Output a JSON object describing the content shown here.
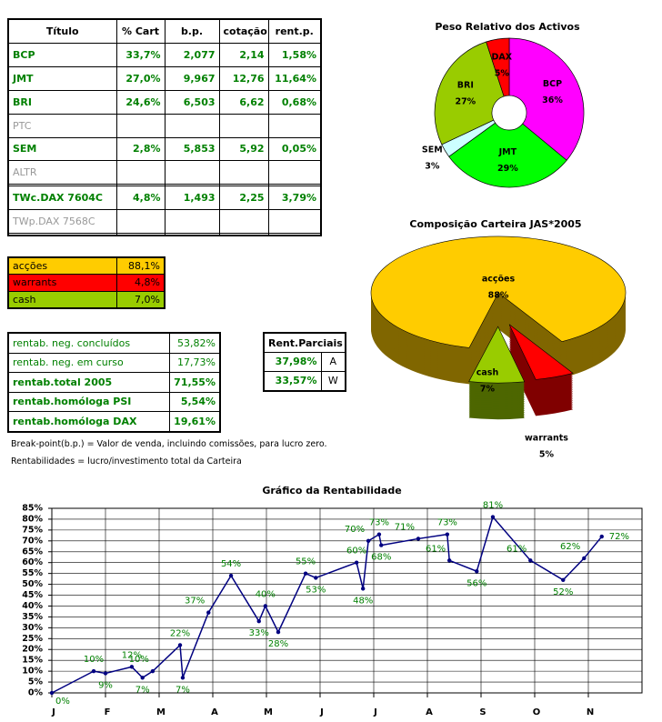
{
  "portfolio_table": {
    "header": [
      "Título",
      "% Cart",
      "b.p.",
      "cotação",
      "rent.p."
    ],
    "rows": [
      [
        "BCP",
        "33,7%",
        "2,077",
        "2,14",
        "1,58%"
      ],
      [
        "JMT",
        "27,0%",
        "9,967",
        "12,76",
        "11,64%"
      ],
      [
        "BRI",
        "24,6%",
        "6,503",
        "6,62",
        "0,68%"
      ],
      [
        "PTC"
      ],
      [
        "SEM",
        "2,8%",
        "5,853",
        "5,92",
        "0,05%"
      ],
      [
        "ALTR"
      ],
      [],
      [
        "TWc.DAX 7604C",
        "4,8%",
        "1,493",
        "2,25",
        "3,79%"
      ],
      [
        "TWp.DAX 7568C"
      ],
      []
    ]
  },
  "allocation_table": {
    "rows": [
      {
        "label": "acções",
        "value": "88,1%",
        "color": "#ffcc00"
      },
      {
        "label": "warrants",
        "value": "4,8%",
        "color": "#ff0000"
      },
      {
        "label": "cash",
        "value": "7,0%",
        "color": "#99cc00"
      }
    ]
  },
  "returns_table": {
    "rows": [
      {
        "label": "rentab. neg. concluídos",
        "value": "53,82%",
        "bold": false
      },
      {
        "label": "rentab. neg. em curso",
        "value": "17,73%",
        "bold": false
      },
      {
        "label": "rentab.total 2005",
        "value": "71,55%",
        "bold": true
      },
      {
        "label": "rentab.homóloga PSI",
        "value": "5,54%",
        "bold": true
      },
      {
        "label": "rentab.homóloga DAX",
        "value": "19,61%",
        "bold": true
      }
    ]
  },
  "partial_returns_table": {
    "header": "Rent.Parciais",
    "rows": [
      [
        "37,98%",
        "A"
      ],
      [
        "33,57%",
        "W"
      ]
    ]
  },
  "notes": [
    "Break-point(b.p.) = Valor de venda, incluindo comissões, para lucro zero.",
    "Rentabilidades = lucro/investimento total da Carteira"
  ],
  "chart_data": [
    {
      "type": "pie",
      "donut": true,
      "title": "Peso Relativo dos Activos",
      "categories": [
        "BCP",
        "JMT",
        "SEM",
        "BRI",
        "DAX"
      ],
      "values": [
        36,
        29,
        3,
        27,
        5
      ],
      "value_labels": [
        "36%",
        "29%",
        "3%",
        "27%",
        "5%"
      ],
      "colors": [
        "#ff00ff",
        "#00ff00",
        "#ccffff",
        "#99cc00",
        "#ff0000"
      ]
    },
    {
      "type": "pie3d",
      "title": "Composição Carteira JAS*2005",
      "categories": [
        "acções",
        "warrants",
        "cash"
      ],
      "values": [
        88,
        5,
        7
      ],
      "value_labels": [
        "88%",
        "5%",
        "7%"
      ],
      "colors": [
        "#ffcc00",
        "#ff0000",
        "#99cc00"
      ],
      "exploded": [
        false,
        true,
        true
      ]
    },
    {
      "type": "line",
      "title": "Gráfico da Rentabilidade",
      "color": "#000080",
      "label_color": "#008000",
      "x": [
        0,
        0.78,
        1.0,
        1.49,
        1.69,
        1.88,
        2.39,
        2.44,
        2.92,
        3.34,
        3.86,
        3.98,
        4.22,
        4.73,
        4.92,
        5.68,
        5.8,
        5.9,
        6.1,
        6.14,
        6.83,
        7.37,
        7.41,
        7.92,
        8.22,
        8.92,
        9.53,
        9.92,
        10.25
      ],
      "values": [
        0,
        10,
        9,
        12,
        7,
        10,
        22,
        7,
        37,
        54,
        33,
        40,
        28,
        55,
        53,
        60,
        48,
        70,
        73,
        68,
        71,
        73,
        61,
        56,
        81,
        61,
        52,
        62,
        72
      ],
      "value_labels": [
        "0%",
        "10%",
        "9%",
        "12%",
        "7%",
        "10%",
        "22%",
        "7%",
        "37%",
        "54%",
        "33%",
        "40%",
        "28%",
        "55%",
        "53%",
        "60%",
        "48%",
        "70%",
        "73%",
        "68%",
        "71%",
        "73%",
        "61%",
        "56%",
        "81%",
        "61%",
        "52%",
        "62%",
        "72%"
      ],
      "xlim": [
        0,
        11
      ],
      "xticks": [
        {
          "value": 0,
          "label": "J"
        },
        {
          "value": 1,
          "label": "F"
        },
        {
          "value": 2,
          "label": "M"
        },
        {
          "value": 3,
          "label": "A"
        },
        {
          "value": 4,
          "label": "M"
        },
        {
          "value": 5,
          "label": "J"
        },
        {
          "value": 6,
          "label": "J"
        },
        {
          "value": 7,
          "label": "A"
        },
        {
          "value": 8,
          "label": "S"
        },
        {
          "value": 9,
          "label": "O"
        },
        {
          "value": 10,
          "label": "N"
        }
      ],
      "ylim": [
        0,
        85
      ],
      "yticks": [
        {
          "value": 0,
          "label": "0%"
        },
        {
          "value": 5,
          "label": "5%"
        },
        {
          "value": 10,
          "label": "10%"
        },
        {
          "value": 15,
          "label": "15%"
        },
        {
          "value": 20,
          "label": "20%"
        },
        {
          "value": 25,
          "label": "25%"
        },
        {
          "value": 30,
          "label": "30%"
        },
        {
          "value": 35,
          "label": "35%"
        },
        {
          "value": 40,
          "label": "40%"
        },
        {
          "value": 45,
          "label": "45%"
        },
        {
          "value": 50,
          "label": "50%"
        },
        {
          "value": 55,
          "label": "55%"
        },
        {
          "value": 60,
          "label": "60%"
        },
        {
          "value": 65,
          "label": "65%"
        },
        {
          "value": 70,
          "label": "70%"
        },
        {
          "value": 75,
          "label": "75%"
        },
        {
          "value": 80,
          "label": "80%"
        },
        {
          "value": 85,
          "label": "85%"
        }
      ],
      "grid": true
    }
  ]
}
